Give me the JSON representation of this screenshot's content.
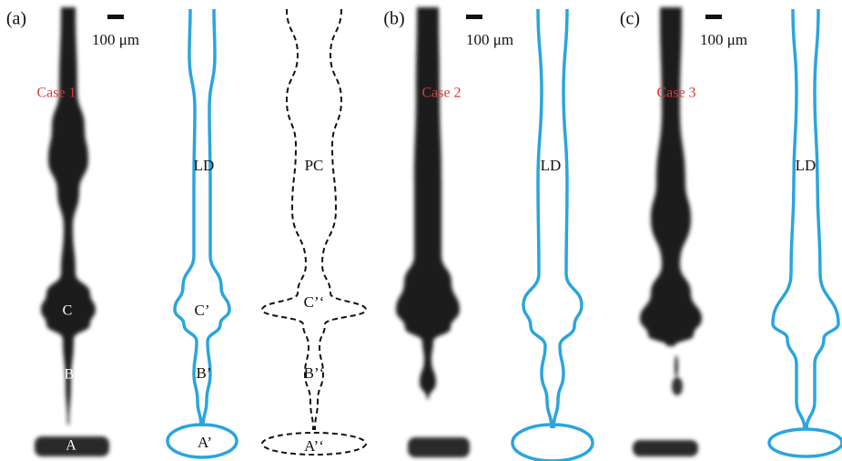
{
  "panels": [
    {
      "label": "(a)",
      "scale": "100 μm",
      "case": "Case 1",
      "photo_labels": [
        "C",
        "B",
        "A"
      ],
      "outlines": [
        {
          "label": "LD",
          "parts": [
            "C’",
            "B’",
            "A’"
          ]
        },
        {
          "label": "PC",
          "parts": [
            "C’‘",
            "B’‘",
            "A’‘"
          ]
        }
      ]
    },
    {
      "label": "(b)",
      "scale": "100 μm",
      "case": "Case 2",
      "photo_labels": [],
      "outlines": [
        {
          "label": "LD",
          "parts": []
        }
      ]
    },
    {
      "label": "(c)",
      "scale": "100 μm",
      "case": "Case 3",
      "photo_labels": [],
      "outlines": [
        {
          "label": "LD",
          "parts": []
        }
      ]
    }
  ]
}
